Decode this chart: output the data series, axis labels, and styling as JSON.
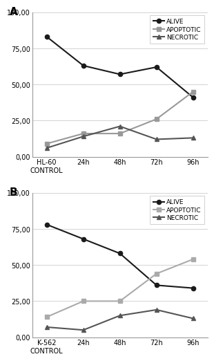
{
  "panel_A": {
    "label": "A",
    "x_labels": [
      "HL-60\nCONTROL",
      "24h",
      "48h",
      "72h",
      "96h"
    ],
    "alive": [
      83,
      63,
      57,
      62,
      41
    ],
    "apoptotic": [
      9,
      16,
      16,
      26,
      45
    ],
    "necrotic": [
      6,
      14,
      21,
      12,
      13
    ],
    "ylim": [
      0,
      100
    ],
    "yticks": [
      0,
      25,
      50,
      75,
      100
    ],
    "ytick_labels": [
      "0,00",
      "25,00",
      "50,00",
      "75,00",
      "100,00"
    ],
    "alive_color": "#1a1a1a",
    "apoptotic_color": "#999999",
    "necrotic_color": "#555555"
  },
  "panel_B": {
    "label": "B",
    "x_labels": [
      "K-562\nCONTROL",
      "24h",
      "48h",
      "72h",
      "96h"
    ],
    "alive": [
      78,
      68,
      58,
      36,
      34
    ],
    "apoptotic": [
      14,
      25,
      25,
      44,
      54
    ],
    "necrotic": [
      7,
      5,
      15,
      19,
      13
    ],
    "ylim": [
      0,
      100
    ],
    "yticks": [
      0,
      25,
      50,
      75,
      100
    ],
    "ytick_labels": [
      "0,00",
      "25,00",
      "50,00",
      "75,00",
      "100,00"
    ],
    "alive_color": "#1a1a1a",
    "apoptotic_color": "#aaaaaa",
    "necrotic_color": "#555555"
  }
}
